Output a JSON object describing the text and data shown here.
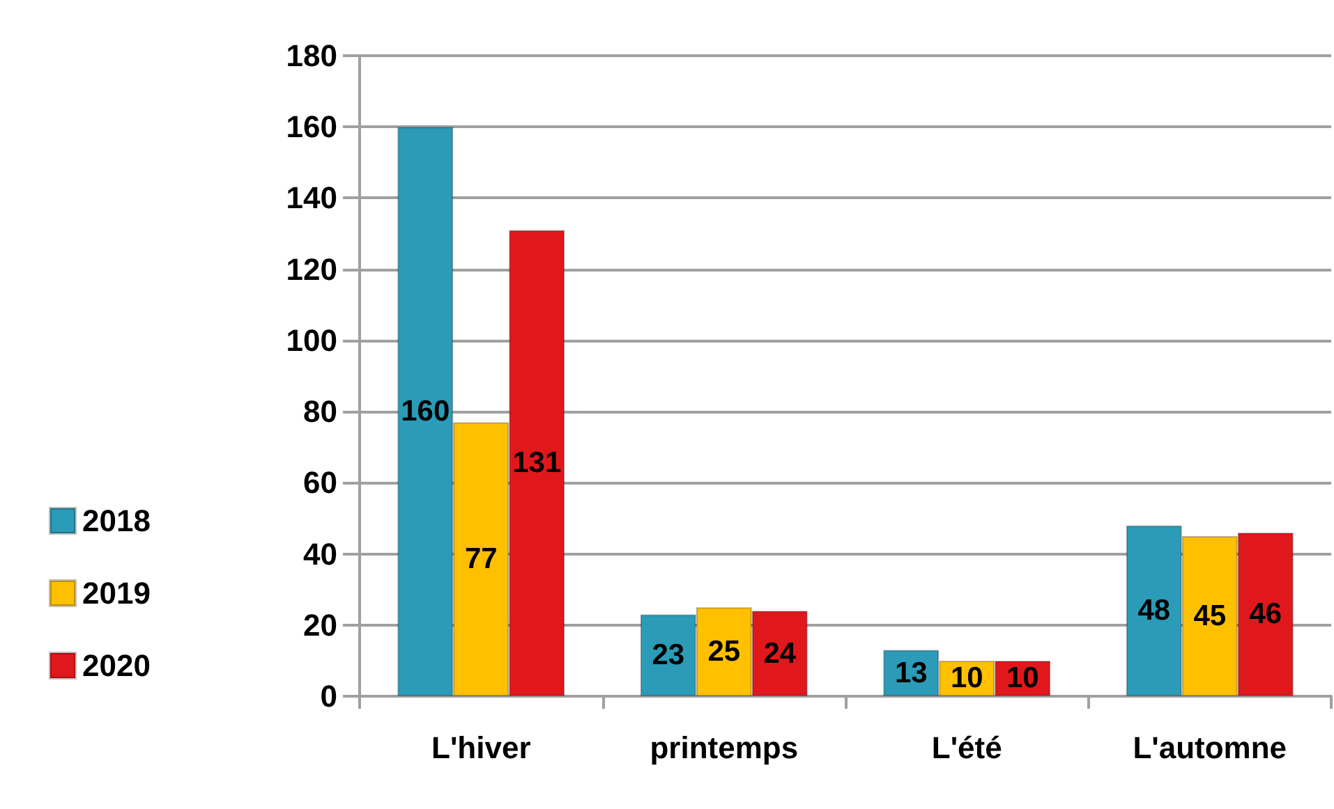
{
  "chart_data": {
    "type": "bar",
    "categories": [
      "L'hiver",
      "printemps",
      "L'été",
      "L'automne"
    ],
    "series": [
      {
        "name": "2018",
        "color": "#2b9bb7",
        "values": [
          160,
          23,
          13,
          48
        ]
      },
      {
        "name": "2019",
        "color": "#ffc000",
        "values": [
          77,
          25,
          10,
          45
        ]
      },
      {
        "name": "2020",
        "color": "#e0181c",
        "values": [
          131,
          24,
          10,
          46
        ]
      }
    ],
    "ylim": [
      0,
      180
    ],
    "yticks": [
      0,
      20,
      40,
      60,
      80,
      100,
      120,
      140,
      160,
      180
    ],
    "grid": "y",
    "legend": "left",
    "data_labels": true
  }
}
